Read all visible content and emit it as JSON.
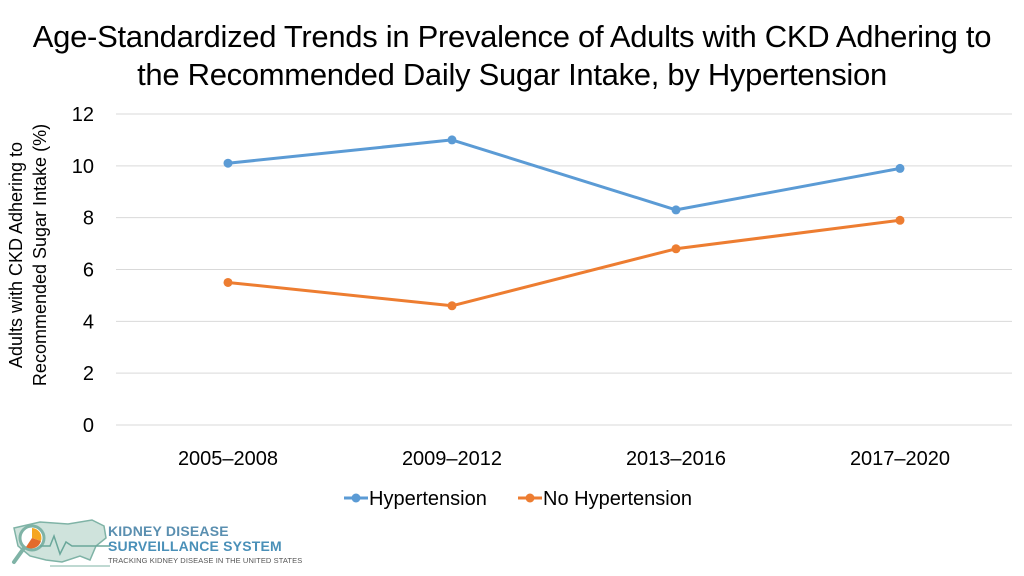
{
  "title_lines": [
    "Age-Standardized Trends in Prevalence of Adults with CKD Adhering to",
    "the Recommended Daily Sugar Intake, by Hypertension"
  ],
  "chart_data": {
    "type": "line",
    "title": "Age-Standardized Trends in Prevalence of Adults with CKD Adhering to the Recommended Daily Sugar Intake, by Hypertension",
    "xlabel": "",
    "ylabel_lines": [
      "Adults with CKD Adhering to",
      "Recommended Sugar Intake (%)"
    ],
    "categories": [
      "2005–2008",
      "2009–2012",
      "2013–2016",
      "2017–2020"
    ],
    "y_ticks": [
      "0",
      "2",
      "4",
      "6",
      "8",
      "10",
      "12"
    ],
    "ylim": [
      0,
      12
    ],
    "grid": true,
    "legend_position": "bottom",
    "series": [
      {
        "name": "Hypertension",
        "color": "#5b9bd5",
        "values": [
          10.1,
          11.0,
          8.3,
          9.9
        ]
      },
      {
        "name": "No Hypertension",
        "color": "#ed7d31",
        "values": [
          5.5,
          4.6,
          6.8,
          7.9
        ]
      }
    ]
  },
  "logo": {
    "line1": "KIDNEY DISEASE",
    "line2": "SURVEILLANCE SYSTEM",
    "line3": "TRACKING KIDNEY DISEASE IN THE UNITED STATES"
  }
}
